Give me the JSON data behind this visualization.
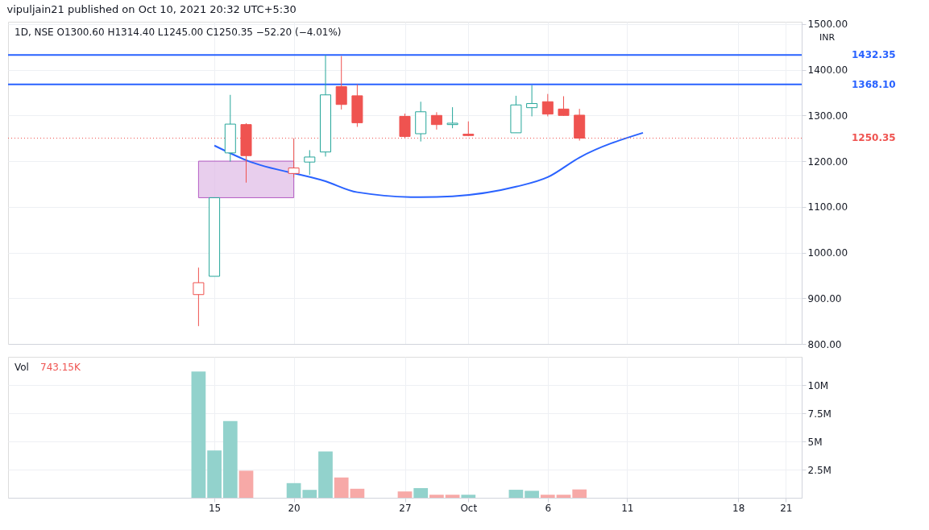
{
  "chart_data": [
    {
      "type": "candlestick",
      "title": "1D, NSE  O1300.60  H1314.40  L1245.00  C1250.35  −52.20 (−4.01%)",
      "ylabel": "INR",
      "annotations": [
        "vipuljain21 published on Oct 10, 2021 20:32 UTC+5:30"
      ],
      "x": [
        "2021-09-14",
        "2021-09-15",
        "2021-09-16",
        "2021-09-17",
        "2021-09-20",
        "2021-09-21",
        "2021-09-22",
        "2021-09-23",
        "2021-09-24",
        "2021-09-27",
        "2021-09-28",
        "2021-09-29",
        "2021-09-30",
        "2021-10-01",
        "2021-10-04",
        "2021-10-05",
        "2021-10-06",
        "2021-10-07",
        "2021-10-08"
      ],
      "ohlc": [
        [
          908,
          967,
          839,
          934
        ],
        [
          948,
          1120,
          948,
          1120
        ],
        [
          1218,
          1345,
          1199,
          1281
        ],
        [
          1280,
          1283,
          1153,
          1212
        ],
        [
          1173,
          1250,
          1164,
          1185
        ],
        [
          1198,
          1224,
          1170,
          1209
        ],
        [
          1220,
          1432.35,
          1210,
          1345
        ],
        [
          1363,
          1430,
          1313,
          1324
        ],
        [
          1343,
          1368,
          1275,
          1284
        ],
        [
          1298,
          1304,
          1250,
          1254
        ],
        [
          1260,
          1330,
          1243,
          1308
        ],
        [
          1300,
          1307,
          1269,
          1280
        ],
        [
          1280,
          1318,
          1272,
          1283
        ],
        [
          1259,
          1287,
          1255,
          1256
        ],
        [
          1262,
          1343,
          1262,
          1323
        ],
        [
          1317,
          1366,
          1298,
          1326
        ],
        [
          1330,
          1347,
          1298,
          1303
        ],
        [
          1314,
          1342,
          1299,
          1300
        ],
        [
          1300.6,
          1314.4,
          1245.0,
          1250.35
        ]
      ],
      "colors": [
        "#ef5350",
        "#26a69a",
        "#26a69a",
        "#ef5350",
        "#ef5350",
        "#26a69a",
        "#26a69a",
        "#ef5350",
        "#ef5350",
        "#ef5350",
        "#26a69a",
        "#ef5350",
        "#26a69a",
        "#ef5350",
        "#26a69a",
        "#26a69a",
        "#ef5350",
        "#ef5350",
        "#ef5350"
      ],
      "series": [
        {
          "type": "bar",
          "color": "#e1bee7",
          "x": [
            "2021-09-17"
          ],
          "values": [
            80
          ],
          "base": [
            1120
          ]
        },
        {
          "type": "line",
          "color": "#2962ff",
          "x": [
            "2021-09-15",
            "2021-09-17",
            "2021-09-22",
            "2021-09-24",
            "2021-09-28",
            "2021-09-30",
            "2021-10-04",
            "2021-10-06",
            "2021-10-08",
            "2021-10-12"
          ],
          "values": [
            1234,
            1202,
            1156,
            1132,
            1121,
            1123,
            1144,
            1165,
            1208,
            1262
          ]
        }
      ],
      "ref_lines": [
        {
          "axis": "y",
          "value": 1432.35,
          "label": "1432.35",
          "color": "#2962ff",
          "line_style": "solid"
        },
        {
          "axis": "y",
          "value": 1368.1,
          "label": "1368.10",
          "color": "#2962ff",
          "line_style": "solid"
        },
        {
          "axis": "y",
          "value": 1250.35,
          "label": "1250.35",
          "color": "#ef5350",
          "line_style": "dotted"
        }
      ],
      "xlim": [
        "2021-09-02",
        "2021-10-22"
      ],
      "xticks": [
        {
          "value": "2021-09-15",
          "label": null
        },
        {
          "value": "2021-09-20",
          "label": null
        },
        {
          "value": "2021-09-27",
          "label": null
        },
        {
          "value": "2021-10-01",
          "label": null
        },
        {
          "value": "2021-10-06",
          "label": null
        },
        {
          "value": "2021-10-11",
          "label": null
        },
        {
          "value": "2021-10-18",
          "label": null
        },
        {
          "value": "2021-10-21",
          "label": null
        }
      ],
      "ylim": [
        800,
        1505
      ],
      "yticks": [
        {
          "value": 800,
          "label": "800.00"
        },
        {
          "value": 900,
          "label": "900.00"
        },
        {
          "value": 1000,
          "label": "1000.00"
        },
        {
          "value": 1100,
          "label": "1100.00"
        },
        {
          "value": 1200,
          "label": "1200.00"
        },
        {
          "value": 1300,
          "label": "1300.00"
        },
        {
          "value": 1400,
          "label": "1400.00"
        },
        {
          "value": 1500,
          "label": "1500.00"
        }
      ],
      "grid": true,
      "tick_labels": "y"
    },
    {
      "type": "bar",
      "title": "Vol",
      "annotations": [
        "743.15K"
      ],
      "x": [
        "2021-09-14",
        "2021-09-15",
        "2021-09-16",
        "2021-09-17",
        "2021-09-20",
        "2021-09-21",
        "2021-09-22",
        "2021-09-23",
        "2021-09-24",
        "2021-09-27",
        "2021-09-28",
        "2021-09-29",
        "2021-09-30",
        "2021-10-01",
        "2021-10-04",
        "2021-10-05",
        "2021-10-06",
        "2021-10-07",
        "2021-10-08"
      ],
      "values": [
        11.2,
        4.2,
        6.8,
        2.4,
        1.3,
        0.7,
        4.1,
        1.8,
        0.8,
        0.56,
        0.86,
        0.27,
        0.27,
        0.27,
        0.71,
        0.62,
        0.27,
        0.27,
        0.74
      ],
      "colors": [
        "#92d2cc",
        "#92d2cc",
        "#92d2cc",
        "#f7a9a7",
        "#92d2cc",
        "#92d2cc",
        "#92d2cc",
        "#f7a9a7",
        "#f7a9a7",
        "#f7a9a7",
        "#92d2cc",
        "#f7a9a7",
        "#f7a9a7",
        "#92d2cc",
        "#92d2cc",
        "#92d2cc",
        "#f7a9a7",
        "#f7a9a7",
        "#f7a9a7"
      ],
      "xlim": [
        "2021-09-02",
        "2021-10-22"
      ],
      "xticks": [
        {
          "value": "2021-09-15",
          "label": "15"
        },
        {
          "value": "2021-09-20",
          "label": "20"
        },
        {
          "value": "2021-09-27",
          "label": "27"
        },
        {
          "value": "2021-10-01",
          "label": "Oct"
        },
        {
          "value": "2021-10-06",
          "label": "6"
        },
        {
          "value": "2021-10-11",
          "label": "11"
        },
        {
          "value": "2021-10-18",
          "label": "18"
        },
        {
          "value": "2021-10-21",
          "label": "21"
        }
      ],
      "ylim": [
        0,
        12.5
      ],
      "yticks": [
        {
          "value": 2.5,
          "label": "2.5M"
        },
        {
          "value": 5,
          "label": "5M"
        },
        {
          "value": 7.5,
          "label": "7.5M"
        },
        {
          "value": 10,
          "label": "10M"
        }
      ],
      "grid": true
    }
  ]
}
